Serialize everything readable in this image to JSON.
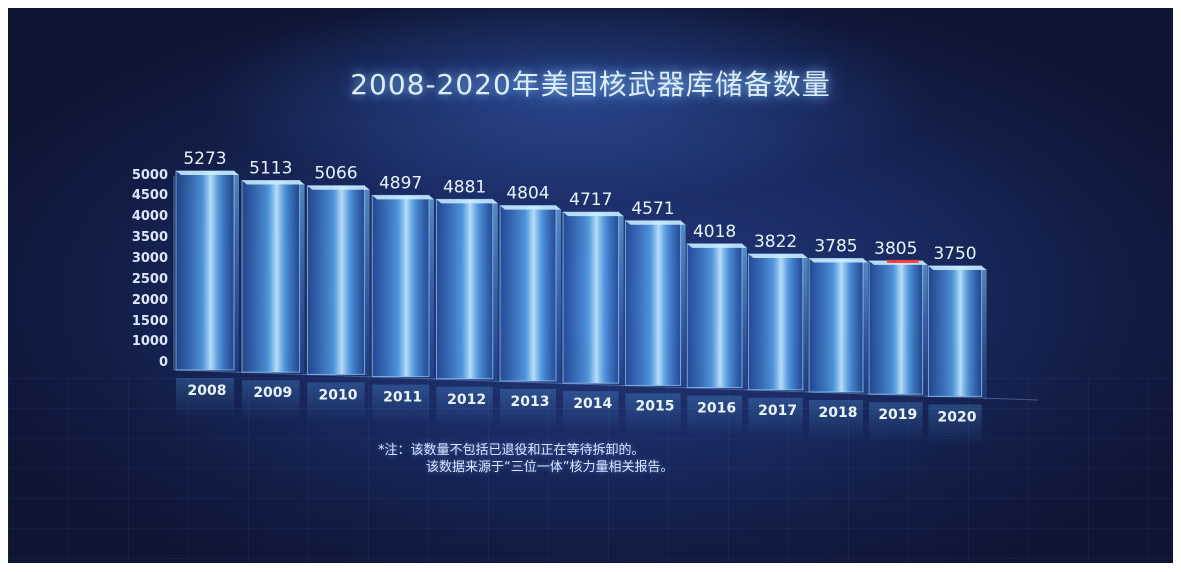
{
  "note": {
    "line1": "*注：该数量不包括已退役和正在等待拆卸的。",
    "line2": "该数据来源于“三位一体”核力量相关报告。"
  },
  "colors": {
    "background": "#17265a",
    "bar": "#5fb4ff",
    "glow": "#bfe6ff",
    "highlight": "#ff3b3b"
  },
  "chart_data": {
    "type": "bar",
    "title": "2008-2020年美国核武器库储备数量",
    "xlabel": "",
    "ylabel": "",
    "categories": [
      "2008",
      "2009",
      "2010",
      "2011",
      "2012",
      "2013",
      "2014",
      "2015",
      "2016",
      "2017",
      "2018",
      "2019",
      "2020"
    ],
    "values": [
      5273,
      5113,
      5066,
      4897,
      4881,
      4804,
      4717,
      4571,
      4018,
      3822,
      3785,
      3805,
      3750
    ],
    "y_ticks": [
      0,
      1000,
      1500,
      2000,
      2500,
      3000,
      3500,
      4000,
      4500,
      5000
    ],
    "ylim": [
      0,
      5273
    ],
    "grid": false,
    "legend": "none"
  }
}
